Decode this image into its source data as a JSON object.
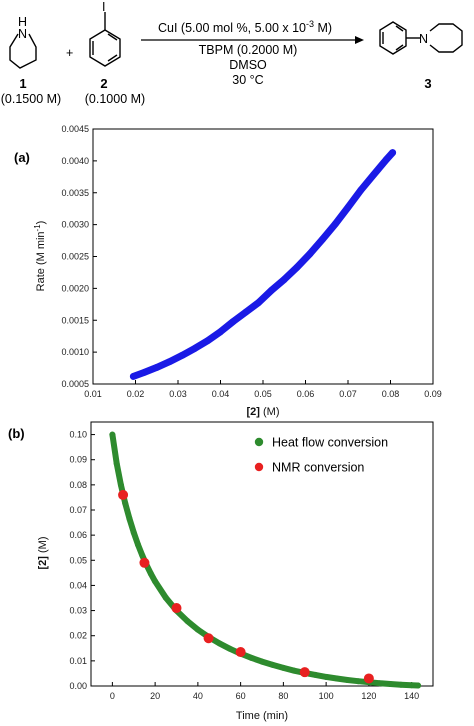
{
  "scheme": {
    "reactant1": {
      "number": "1",
      "concentration": "(0.1500 M)",
      "heteroatom": "N",
      "n_h": "H"
    },
    "reactant2": {
      "number": "2",
      "concentration": "(0.1000 M)",
      "substituent": "I"
    },
    "plus": "+",
    "conditions": [
      "CuI (5.00 mol %, 5.00 x 10",
      "TBPM (0.2000 M)",
      "DMSO",
      "30 °C"
    ],
    "conditions_superscript": "-3",
    "conditions_tail": " M)",
    "product": {
      "number": "3",
      "heteroatom": "N"
    }
  },
  "chart_data": [
    {
      "type": "scatter",
      "panel_label": "(a)",
      "xlabel_bold": "[2]",
      "xlabel_rest": " (M)",
      "ylabel_main": "Rate (M min",
      "ylabel_sup": "-1",
      "ylabel_close": ")",
      "xlim": [
        0.01,
        0.09
      ],
      "ylim": [
        0.0005,
        0.0045
      ],
      "xticks": [
        "0.01",
        "0.02",
        "0.03",
        "0.04",
        "0.05",
        "0.06",
        "0.07",
        "0.08",
        "0.09"
      ],
      "yticks": [
        "0.0005",
        "0.0010",
        "0.0015",
        "0.0020",
        "0.0025",
        "0.0030",
        "0.0035",
        "0.0040",
        "0.0045"
      ],
      "series": [
        {
          "color": "#1a1ae6",
          "x": [
            0.0195,
            0.022,
            0.025,
            0.028,
            0.031,
            0.034,
            0.037,
            0.04,
            0.043,
            0.046,
            0.049,
            0.052,
            0.055,
            0.058,
            0.061,
            0.064,
            0.067,
            0.07,
            0.073,
            0.076,
            0.079,
            0.0805
          ],
          "y": [
            0.00062,
            0.00068,
            0.00076,
            0.00085,
            0.00095,
            0.00106,
            0.00118,
            0.00132,
            0.00148,
            0.00163,
            0.00178,
            0.00197,
            0.00214,
            0.00233,
            0.00254,
            0.00277,
            0.00301,
            0.00327,
            0.00354,
            0.00378,
            0.00402,
            0.00413
          ]
        }
      ],
      "grid": false
    },
    {
      "type": "scatter",
      "panel_label": "(b)",
      "xlabel": "Time (min)",
      "ylabel_bold": "[2]",
      "ylabel_rest": " (M)",
      "xlim": [
        -10,
        150
      ],
      "ylim": [
        0,
        0.105
      ],
      "xticks": [
        "0",
        "20",
        "40",
        "60",
        "80",
        "100",
        "120",
        "140"
      ],
      "yticks": [
        "0.00",
        "0.01",
        "0.02",
        "0.03",
        "0.04",
        "0.05",
        "0.06",
        "0.07",
        "0.08",
        "0.09",
        "0.10"
      ],
      "legend_position": "top-right",
      "series": [
        {
          "name": "Heat flow conversion",
          "color": "#2e8b2e",
          "x": [
            0,
            2,
            4,
            6,
            8,
            10,
            12,
            14,
            16,
            18,
            20,
            25,
            30,
            35,
            40,
            45,
            50,
            55,
            60,
            65,
            70,
            75,
            80,
            85,
            90,
            95,
            100,
            105,
            110,
            115,
            120,
            125,
            130,
            135,
            140,
            143
          ],
          "y": [
            0.1,
            0.0885,
            0.08,
            0.0727,
            0.0665,
            0.061,
            0.0562,
            0.0519,
            0.0481,
            0.0447,
            0.0416,
            0.0351,
            0.03,
            0.0259,
            0.0224,
            0.0195,
            0.017,
            0.0148,
            0.0129,
            0.0112,
            0.0097,
            0.0084,
            0.0072,
            0.0061,
            0.0052,
            0.0044,
            0.0036,
            0.003,
            0.0024,
            0.0019,
            0.0015,
            0.0011,
            0.0008,
            0.0005,
            0.0003,
            0.0002
          ]
        },
        {
          "name": "NMR conversion",
          "color": "#e82020",
          "x": [
            5,
            15,
            30,
            45,
            60,
            90,
            120
          ],
          "y": [
            0.076,
            0.049,
            0.031,
            0.019,
            0.0135,
            0.0055,
            0.003
          ]
        }
      ],
      "grid": false
    }
  ]
}
